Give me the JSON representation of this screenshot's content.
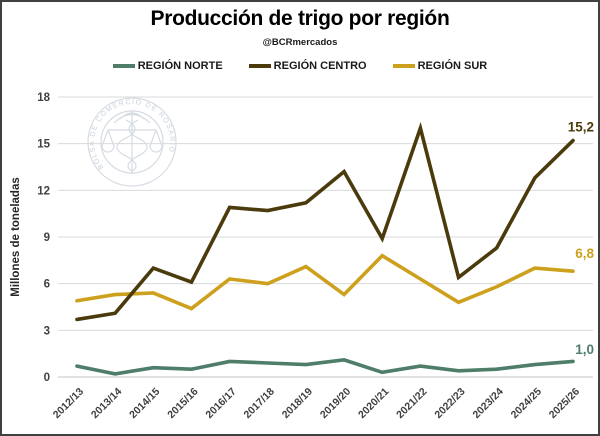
{
  "page": {
    "title": "Producción de trigo por región",
    "subtitle": "@BCRmercados"
  },
  "watermark": {
    "text": "BOLSA DE COMERCIO DE ROSARIO"
  },
  "chart_data": {
    "type": "line",
    "title": "Producción de trigo por región",
    "subtitle": "@BCRmercados",
    "xlabel": "",
    "ylabel": "Millones de toneladas",
    "ylim": [
      0,
      18
    ],
    "ytick_step": 3,
    "grid": true,
    "legend_position": "top",
    "categories": [
      "2012/13",
      "2013/14",
      "2014/15",
      "2015/16",
      "2016/17",
      "2017/18",
      "2018/19",
      "2019/20",
      "2020/21",
      "2021/22",
      "2022/23",
      "2023/24",
      "2024/25",
      "2025/26"
    ],
    "series": [
      {
        "name": "REGIÓN NORTE",
        "color": "#4E7D6A",
        "values": [
          0.7,
          0.2,
          0.6,
          0.5,
          1.0,
          0.9,
          0.8,
          1.1,
          0.3,
          0.7,
          0.4,
          0.5,
          0.8,
          1.0
        ],
        "end_label": "1,0"
      },
      {
        "name": "REGIÓN CENTRO",
        "color": "#4A3A0C",
        "values": [
          3.7,
          4.1,
          7.0,
          6.1,
          10.9,
          10.7,
          11.2,
          13.2,
          8.9,
          16.0,
          6.4,
          8.3,
          12.8,
          15.2
        ],
        "end_label": "15,2"
      },
      {
        "name": "REGIÓN SUR",
        "color": "#CDA11D",
        "values": [
          4.9,
          5.3,
          5.4,
          4.4,
          6.3,
          6.0,
          7.1,
          5.3,
          7.8,
          6.3,
          4.8,
          5.8,
          7.0,
          6.8
        ],
        "end_label": "6,8"
      }
    ]
  }
}
